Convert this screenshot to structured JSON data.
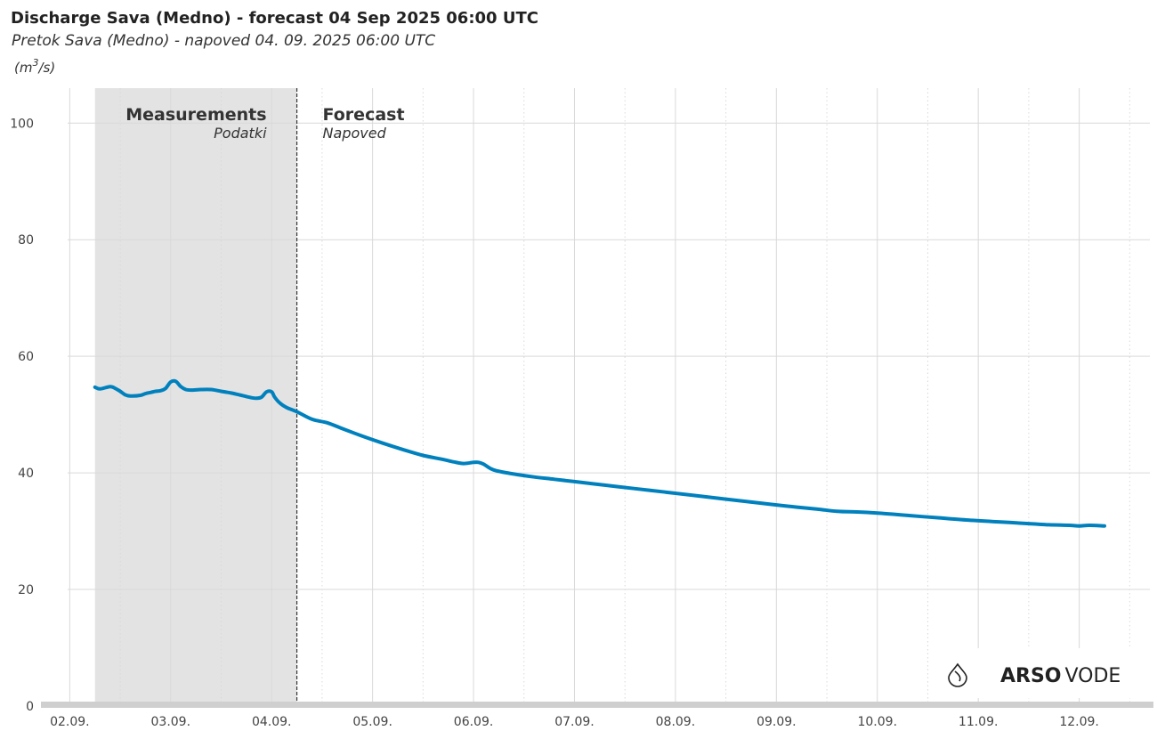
{
  "chart_data": {
    "type": "line",
    "title": "Discharge Sava (Medno) - forecast 04 Sep 2025 06:00 UTC",
    "subtitle": "Pretok Sava (Medno) - napoved 04. 09. 2025 06:00 UTC",
    "ylabel": "(m³/s)",
    "ylabel_parts": {
      "open": "(m",
      "sup": "3",
      "close": "/s)"
    },
    "ylim": [
      0,
      106
    ],
    "yticks": [
      0,
      20,
      40,
      60,
      80,
      100
    ],
    "xlim": [
      1.75,
      12.7
    ],
    "xticks": [
      2,
      3,
      4,
      5,
      6,
      7,
      8,
      9,
      10,
      11,
      12
    ],
    "xtick_labels": [
      "02.09.",
      "03.09.",
      "04.09.",
      "05.09.",
      "06.09.",
      "07.09.",
      "08.09.",
      "09.09.",
      "10.09.",
      "11.09.",
      "12.09."
    ],
    "measurement_period": {
      "start": 2.25,
      "end": 4.25
    },
    "forecast_start": 4.25,
    "regions": {
      "measurements": {
        "title": "Measurements",
        "subtitle": "Podatki"
      },
      "forecast": {
        "title": "Forecast",
        "subtitle": "Napoved"
      }
    },
    "series": [
      {
        "name": "Discharge",
        "color": "#0081bd",
        "x": [
          2.25,
          2.3,
          2.4,
          2.45,
          2.5,
          2.55,
          2.6,
          2.7,
          2.75,
          2.8,
          2.85,
          2.9,
          2.95,
          3.0,
          3.05,
          3.1,
          3.15,
          3.2,
          3.3,
          3.4,
          3.5,
          3.6,
          3.7,
          3.8,
          3.85,
          3.9,
          3.95,
          4.0,
          4.03,
          4.08,
          4.15,
          4.25,
          4.4,
          4.55,
          4.7,
          4.9,
          5.1,
          5.3,
          5.5,
          5.7,
          5.8,
          5.9,
          6.0,
          6.05,
          6.1,
          6.2,
          6.4,
          6.6,
          6.8,
          7.0,
          7.3,
          7.6,
          7.9,
          8.2,
          8.5,
          8.8,
          9.1,
          9.4,
          9.6,
          9.8,
          10.0,
          10.3,
          10.6,
          10.9,
          11.2,
          11.5,
          11.7,
          11.9,
          12.0,
          12.1,
          12.25
        ],
        "values": [
          54.7,
          54.4,
          54.8,
          54.5,
          54.0,
          53.4,
          53.2,
          53.3,
          53.6,
          53.8,
          54.0,
          54.1,
          54.5,
          55.6,
          55.7,
          54.8,
          54.3,
          54.2,
          54.3,
          54.3,
          54.0,
          53.7,
          53.3,
          52.9,
          52.8,
          53.0,
          53.9,
          53.9,
          53.0,
          52.0,
          51.2,
          50.5,
          49.2,
          48.6,
          47.6,
          46.3,
          45.1,
          44.0,
          43.0,
          42.3,
          41.9,
          41.6,
          41.8,
          41.8,
          41.5,
          40.5,
          39.8,
          39.3,
          38.9,
          38.5,
          37.9,
          37.3,
          36.7,
          36.1,
          35.5,
          34.9,
          34.3,
          33.8,
          33.4,
          33.3,
          33.1,
          32.7,
          32.3,
          31.9,
          31.6,
          31.3,
          31.1,
          31.0,
          30.9,
          31.0,
          30.9
        ]
      }
    ]
  },
  "branding": {
    "name_bold": "ARSO",
    "name_light": "VODE",
    "icon": "water-drop-icon"
  },
  "colors": {
    "line": "#0081bd",
    "measurement_band": "#e3e3e3",
    "grid": "#d9d9d9",
    "axis_bar": "#cfcfcf",
    "text": "#333333"
  }
}
